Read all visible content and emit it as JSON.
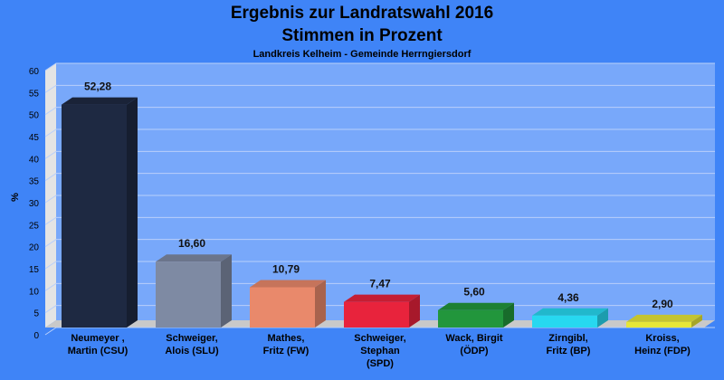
{
  "chart_data": {
    "type": "bar",
    "title": "Ergebnis zur Landratswahl 2016",
    "title_line2": "Stimmen in Prozent",
    "subtitle": "Landkreis Kelheim - Gemeinde Herrngiersdorf",
    "ylabel": "%",
    "ylim": [
      0,
      60
    ],
    "yticks": [
      "0",
      "5",
      "10",
      "15",
      "20",
      "25",
      "30",
      "35",
      "40",
      "45",
      "50",
      "55",
      "60"
    ],
    "grid": true,
    "categories": [
      [
        "Neumeyer ,",
        "Martin (CSU)"
      ],
      [
        "Schweiger,",
        "Alois (SLU)"
      ],
      [
        "Mathes,",
        "Fritz (FW)"
      ],
      [
        "Schweiger,",
        "Stephan",
        "(SPD)"
      ],
      [
        "Wack, Birgit",
        "(ÖDP)"
      ],
      [
        "Zirngibl,",
        "Fritz (BP)"
      ],
      [
        "Kroiss,",
        "Heinz (FDP)"
      ]
    ],
    "values": [
      52.28,
      16.6,
      10.79,
      7.47,
      5.6,
      4.36,
      2.9
    ],
    "value_labels": [
      "52,28",
      "16,60",
      "10,79",
      "7,47",
      "5,60",
      "4,36",
      "2,90"
    ],
    "colors": [
      "#1e2942",
      "#7e8aa3",
      "#e9896b",
      "#e8233c",
      "#22963c",
      "#27d8f0",
      "#e6e638"
    ]
  }
}
